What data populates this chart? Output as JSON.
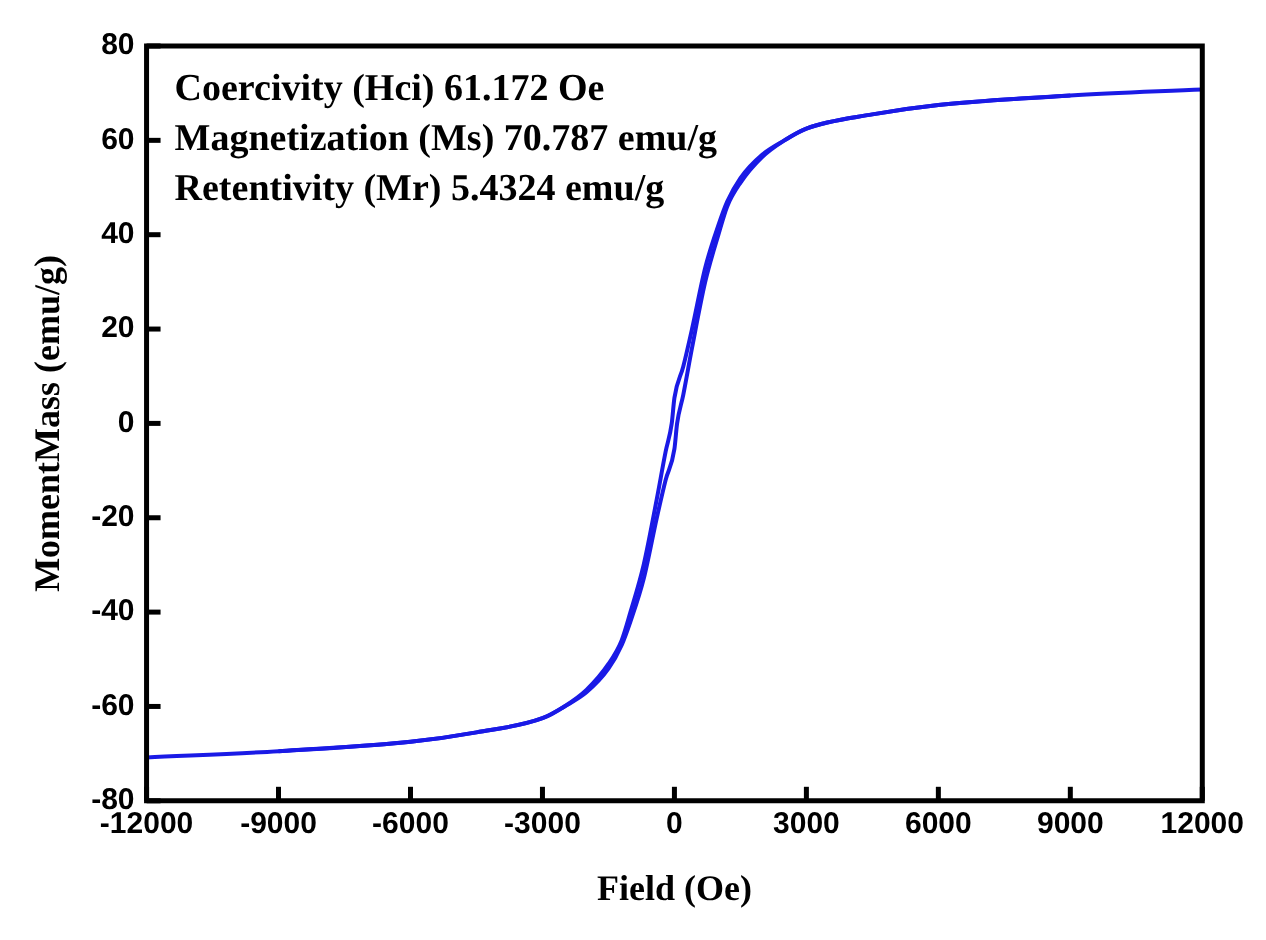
{
  "chart_data": {
    "type": "line",
    "xlabel": "Field (Oe)",
    "ylabel": "MomentMass (emu/g)",
    "annotations": [
      "Coercivity (Hci) 61.172 Oe",
      "Magnetization (Ms) 70.787 emu/g",
      "Retentivity (Mr) 5.4324 emu/g"
    ],
    "series": [
      {
        "color": "#1a1ae6",
        "x": [
          12000,
          9000,
          6000,
          4500,
          3000,
          2500,
          2000,
          1500,
          1200,
          1000,
          700,
          400,
          200,
          0,
          -61,
          -200,
          -400,
          -700,
          -1000,
          -1200,
          -1500,
          -2000,
          -2500,
          -3000,
          -4500,
          -6000,
          -9000,
          -12000
        ],
        "values": [
          70.8,
          69.5,
          67.5,
          65.5,
          62.5,
          60,
          57,
          52,
          47,
          42,
          33,
          20,
          12,
          5.4,
          0,
          -6,
          -16,
          -30,
          -40,
          -46,
          -51,
          -56.5,
          -60,
          -62.5,
          -65.5,
          -67.5,
          -69.5,
          -70.8
        ]
      },
      {
        "color": "#1a1ae6",
        "x": [
          -9000,
          -6000,
          -4500,
          -3000,
          -2500,
          -2000,
          -1500,
          -1200,
          -1000,
          -700,
          -400,
          -200,
          0,
          61,
          200,
          400,
          700,
          1000,
          1200,
          1500,
          2000,
          2500,
          3000,
          4500,
          6000,
          9000
        ],
        "values": [
          -69.5,
          -67.5,
          -65.5,
          -62.5,
          -60,
          -57,
          -52,
          -47,
          -42,
          -33,
          -20,
          -12,
          -5.4,
          0,
          6,
          16,
          30,
          40,
          46,
          51,
          56.5,
          60,
          62.5,
          65.5,
          67.5,
          69.5
        ]
      }
    ],
    "xlim": [
      -12000,
      12000
    ],
    "xticks": [
      -12000,
      -9000,
      -6000,
      -3000,
      0,
      3000,
      6000,
      9000,
      12000
    ],
    "ylim": [
      -80,
      80
    ],
    "yticks": [
      -80,
      -60,
      -40,
      -20,
      0,
      20,
      40,
      60,
      80
    ],
    "grid": false,
    "legend": false,
    "marker": "none",
    "line_style": "solid"
  }
}
